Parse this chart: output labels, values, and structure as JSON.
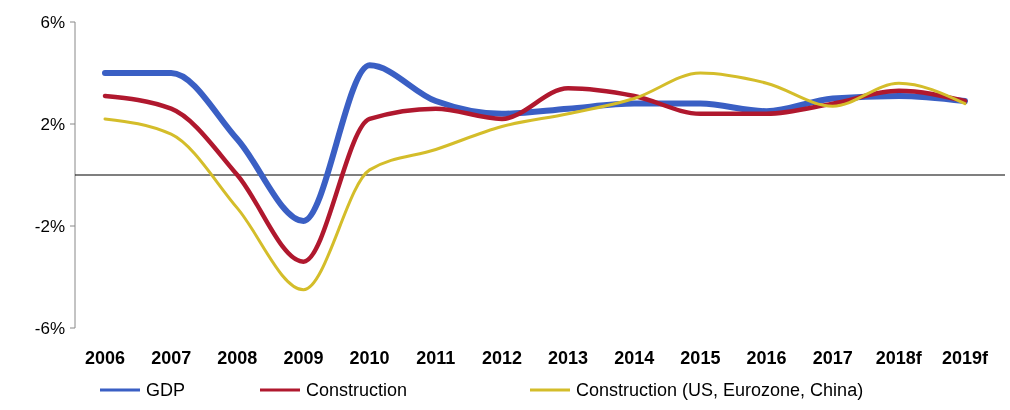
{
  "chart_data": {
    "type": "line",
    "categories": [
      "2006",
      "2007",
      "2008",
      "2009",
      "2010",
      "2011",
      "2012",
      "2013",
      "2014",
      "2015",
      "2016",
      "2017",
      "2018f",
      "2019f"
    ],
    "series": [
      {
        "name": "GDP",
        "color": "#3a5fc4",
        "values": [
          4.0,
          4.0,
          1.4,
          -1.8,
          4.3,
          2.9,
          2.4,
          2.6,
          2.8,
          2.8,
          2.5,
          3.0,
          3.1,
          2.9
        ]
      },
      {
        "name": "Construction",
        "color": "#b0182e",
        "values": [
          3.1,
          2.6,
          0.0,
          -3.4,
          2.2,
          2.6,
          2.2,
          3.4,
          3.1,
          2.4,
          2.4,
          2.8,
          3.3,
          2.9
        ]
      },
      {
        "name": "Construction (US, Eurozone, China)",
        "color": "#d4bd2a",
        "values": [
          2.2,
          1.6,
          -1.3,
          -4.5,
          0.2,
          1.0,
          1.9,
          2.4,
          3.0,
          4.0,
          3.6,
          2.7,
          3.6,
          2.8
        ]
      }
    ],
    "ylim": [
      -6,
      6
    ],
    "yticks": [
      {
        "value": -6,
        "label": "-6%"
      },
      {
        "value": -2,
        "label": "-2%"
      },
      {
        "value": 2,
        "label": "2%"
      },
      {
        "value": 6,
        "label": "6%"
      }
    ],
    "ref_lines": [
      {
        "axis": "y",
        "value": 0,
        "color": "#000000"
      }
    ],
    "grid": false,
    "legend": "bottom",
    "marker": "none",
    "line_style": "solid"
  }
}
